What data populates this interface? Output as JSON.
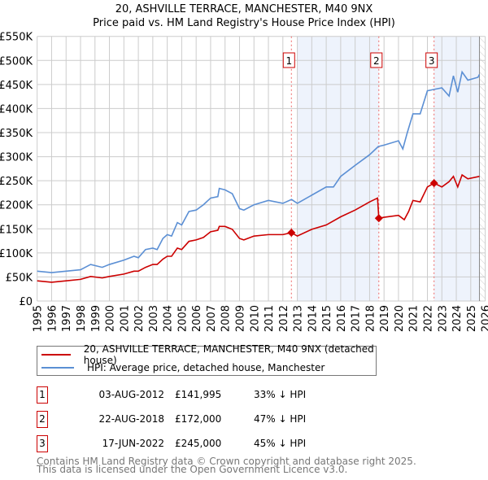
{
  "title_line1": "20, ASHVILLE TERRACE, MANCHESTER, M40 9NX",
  "title_line2": "Price paid vs. HM Land Registry's House Price Index (HPI)",
  "chart_data": {
    "type": "line",
    "title": "20, ASHVILLE TERRACE, MANCHESTER, M40 9NX — Price paid vs. HM Land Registry's House Price Index (HPI)",
    "xlim": [
      1995,
      2026
    ],
    "ylim": [
      0,
      550000
    ],
    "x_ticks": [
      "1995",
      "1996",
      "1997",
      "1998",
      "1999",
      "2000",
      "2001",
      "2002",
      "2003",
      "2004",
      "2005",
      "2006",
      "2007",
      "2008",
      "2009",
      "2010",
      "2011",
      "2012",
      "2013",
      "2014",
      "2015",
      "2016",
      "2017",
      "2018",
      "2019",
      "2020",
      "2021",
      "2022",
      "2023",
      "2024",
      "2025",
      "2026"
    ],
    "y_ticks": [
      {
        "v": 0,
        "label": "£0"
      },
      {
        "v": 50000,
        "label": "£50K"
      },
      {
        "v": 100000,
        "label": "£100K"
      },
      {
        "v": 150000,
        "label": "£150K"
      },
      {
        "v": 200000,
        "label": "£200K"
      },
      {
        "v": 250000,
        "label": "£250K"
      },
      {
        "v": 300000,
        "label": "£300K"
      },
      {
        "v": 350000,
        "label": "£350K"
      },
      {
        "v": 400000,
        "label": "£400K"
      },
      {
        "v": 450000,
        "label": "£450K"
      },
      {
        "v": 500000,
        "label": "£500K"
      },
      {
        "v": 550000,
        "label": "£550K"
      }
    ],
    "grid": true,
    "series": [
      {
        "name": "20, ASHVILLE TERRACE, MANCHESTER, M40 9NX (detached house)",
        "color": "#cc0000",
        "points": [
          [
            1995,
            42
          ],
          [
            1996,
            39
          ],
          [
            1997,
            42
          ],
          [
            1998,
            45
          ],
          [
            1998.7,
            51
          ],
          [
            1999.5,
            48
          ],
          [
            2000,
            51
          ],
          [
            2001,
            56
          ],
          [
            2001.7,
            62
          ],
          [
            2002,
            62
          ],
          [
            2002.5,
            70
          ],
          [
            2003,
            76
          ],
          [
            2003.3,
            76
          ],
          [
            2003.7,
            87
          ],
          [
            2004,
            93
          ],
          [
            2004.3,
            93
          ],
          [
            2004.7,
            110
          ],
          [
            2005,
            107
          ],
          [
            2005.5,
            124
          ],
          [
            2006,
            127
          ],
          [
            2006.5,
            132
          ],
          [
            2007,
            144
          ],
          [
            2007.5,
            147
          ],
          [
            2007.6,
            155
          ],
          [
            2008,
            155
          ],
          [
            2008.5,
            149
          ],
          [
            2009,
            130
          ],
          [
            2009.3,
            127
          ],
          [
            2010,
            135
          ],
          [
            2011,
            138
          ],
          [
            2012,
            138
          ],
          [
            2012.59,
            142
          ],
          [
            2013,
            135
          ],
          [
            2014,
            149
          ],
          [
            2015,
            158
          ],
          [
            2016,
            175
          ],
          [
            2017,
            189
          ],
          [
            2018,
            206
          ],
          [
            2018.55,
            214
          ],
          [
            2018.64,
            172
          ],
          [
            2019,
            174
          ],
          [
            2020,
            178
          ],
          [
            2020.4,
            169
          ],
          [
            2020.7,
            186
          ],
          [
            2021,
            209
          ],
          [
            2021.5,
            206
          ],
          [
            2022,
            237
          ],
          [
            2022.46,
            245
          ],
          [
            2023,
            237
          ],
          [
            2023.5,
            248
          ],
          [
            2023.8,
            259
          ],
          [
            2024.1,
            237
          ],
          [
            2024.4,
            262
          ],
          [
            2024.8,
            254
          ],
          [
            2025.6,
            259
          ]
        ]
      },
      {
        "name": "HPI: Average price, detached house, Manchester",
        "color": "#5b8fd4",
        "points": [
          [
            1995,
            62
          ],
          [
            1996,
            59
          ],
          [
            1997,
            62
          ],
          [
            1998,
            65
          ],
          [
            1998.7,
            76
          ],
          [
            1999.5,
            70
          ],
          [
            2000,
            76
          ],
          [
            2001,
            85
          ],
          [
            2001.7,
            93
          ],
          [
            2002,
            90
          ],
          [
            2002.5,
            107
          ],
          [
            2003,
            110
          ],
          [
            2003.3,
            107
          ],
          [
            2003.7,
            130
          ],
          [
            2004,
            138
          ],
          [
            2004.3,
            135
          ],
          [
            2004.7,
            163
          ],
          [
            2005,
            158
          ],
          [
            2005.5,
            186
          ],
          [
            2006,
            189
          ],
          [
            2006.5,
            200
          ],
          [
            2007,
            214
          ],
          [
            2007.5,
            217
          ],
          [
            2007.6,
            234
          ],
          [
            2008,
            231
          ],
          [
            2008.5,
            223
          ],
          [
            2009,
            192
          ],
          [
            2009.3,
            189
          ],
          [
            2010,
            200
          ],
          [
            2011,
            209
          ],
          [
            2012,
            203
          ],
          [
            2012.6,
            211
          ],
          [
            2013,
            203
          ],
          [
            2014,
            220
          ],
          [
            2015,
            237
          ],
          [
            2015.5,
            237
          ],
          [
            2016,
            259
          ],
          [
            2017,
            282
          ],
          [
            2018,
            304
          ],
          [
            2018.6,
            321
          ],
          [
            2019,
            324
          ],
          [
            2020,
            333
          ],
          [
            2020.3,
            316
          ],
          [
            2020.6,
            349
          ],
          [
            2021,
            389
          ],
          [
            2021.5,
            389
          ],
          [
            2022,
            437
          ],
          [
            2022.5,
            440
          ],
          [
            2023,
            443
          ],
          [
            2023.5,
            426
          ],
          [
            2023.8,
            468
          ],
          [
            2024.1,
            434
          ],
          [
            2024.4,
            476
          ],
          [
            2024.8,
            459
          ],
          [
            2025.5,
            465
          ],
          [
            2025.6,
            471
          ]
        ]
      }
    ],
    "y_units": "thousands GBP",
    "sales": [
      {
        "n": "1",
        "x": 2012.59,
        "y": 141995
      },
      {
        "n": "2",
        "x": 2018.64,
        "y": 172000
      },
      {
        "n": "3",
        "x": 2022.46,
        "y": 245000
      }
    ],
    "shaded_ranges": [
      [
        2013.0,
        2018.64
      ],
      [
        2022.46,
        2025.6
      ]
    ],
    "forecast_start": 2025.6,
    "legend_position": "below"
  },
  "legend": {
    "red_label": "20, ASHVILLE TERRACE, MANCHESTER, M40 9NX (detached house)",
    "blue_label": "HPI: Average price, detached house, Manchester"
  },
  "transactions": [
    {
      "n": "1",
      "date": "03-AUG-2012",
      "price": "£141,995",
      "hpi": "33% ↓ HPI"
    },
    {
      "n": "2",
      "date": "22-AUG-2018",
      "price": "£172,000",
      "hpi": "47% ↓ HPI"
    },
    {
      "n": "3",
      "date": "17-JUN-2022",
      "price": "£245,000",
      "hpi": "45% ↓ HPI"
    }
  ],
  "footer_line1": "Contains HM Land Registry data © Crown copyright and database right 2025.",
  "footer_line2": "This data is licensed under the Open Government Licence v3.0."
}
